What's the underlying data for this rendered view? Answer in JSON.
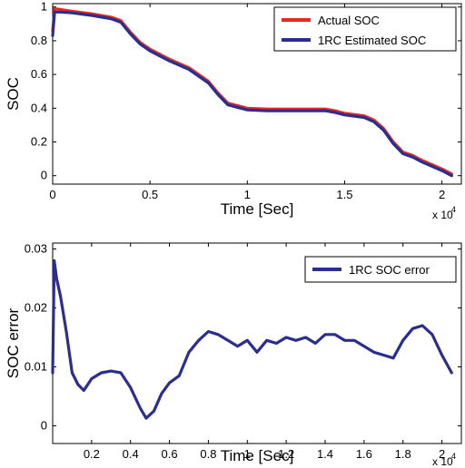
{
  "chart_data": [
    {
      "type": "line",
      "title": "",
      "xlabel": "Time [Sec]",
      "ylabel": "SOC",
      "x_scale_label": "x 10",
      "x_scale_exponent": "4",
      "xlim": [
        0,
        21000
      ],
      "ylim": [
        -0.05,
        1.02
      ],
      "xticks": [
        0,
        5000,
        10000,
        15000,
        20000
      ],
      "xtick_labels": [
        "0",
        "0.5",
        "1",
        "1.5",
        "2"
      ],
      "yticks": [
        0,
        0.2,
        0.4,
        0.6,
        0.8,
        1
      ],
      "ytick_labels": [
        "0",
        "0.2",
        "0.4",
        "0.6",
        "0.8",
        "1"
      ],
      "grid": false,
      "legend_position": "top-right",
      "series": [
        {
          "name": "Actual SOC",
          "color": "#e8281e",
          "x": [
            0,
            100,
            400,
            1000,
            2000,
            3000,
            3500,
            4000,
            4500,
            5000,
            6000,
            7000,
            8000,
            8500,
            9000,
            10000,
            11000,
            12000,
            13000,
            14000,
            14500,
            15000,
            16000,
            16500,
            17000,
            17500,
            18000,
            18500,
            19000,
            20000,
            20500
          ],
          "y": [
            0.86,
            0.99,
            0.985,
            0.975,
            0.96,
            0.94,
            0.92,
            0.85,
            0.79,
            0.75,
            0.69,
            0.64,
            0.56,
            0.49,
            0.43,
            0.4,
            0.395,
            0.395,
            0.395,
            0.395,
            0.385,
            0.37,
            0.355,
            0.33,
            0.28,
            0.2,
            0.14,
            0.12,
            0.09,
            0.04,
            0.01
          ]
        },
        {
          "name": "1RC Estimated SOC",
          "color": "#2b2d8f",
          "x": [
            0,
            100,
            400,
            1000,
            2000,
            3000,
            3500,
            4000,
            4500,
            5000,
            6000,
            7000,
            8000,
            8500,
            9000,
            10000,
            11000,
            12000,
            13000,
            14000,
            14500,
            15000,
            16000,
            16500,
            17000,
            17500,
            18000,
            18500,
            19000,
            20000,
            20500
          ],
          "y": [
            0.83,
            0.97,
            0.97,
            0.965,
            0.95,
            0.93,
            0.91,
            0.84,
            0.78,
            0.74,
            0.68,
            0.63,
            0.55,
            0.48,
            0.42,
            0.39,
            0.385,
            0.385,
            0.385,
            0.385,
            0.375,
            0.36,
            0.345,
            0.32,
            0.27,
            0.19,
            0.13,
            0.11,
            0.08,
            0.03,
            0.0
          ]
        }
      ]
    },
    {
      "type": "line",
      "title": "",
      "xlabel": "Time [Sec]",
      "ylabel": "SOC error",
      "x_scale_label": "x 10",
      "x_scale_exponent": "4",
      "xlim": [
        0,
        21000
      ],
      "ylim": [
        -0.003,
        0.031
      ],
      "xticks": [
        2000,
        4000,
        6000,
        8000,
        10000,
        12000,
        14000,
        16000,
        18000,
        20000
      ],
      "xtick_labels": [
        "0.2",
        "0.4",
        "0.6",
        "0.8",
        "1",
        "1.2",
        "1.4",
        "1.6",
        "1.8",
        "2"
      ],
      "yticks": [
        0,
        0.01,
        0.02,
        0.03
      ],
      "ytick_labels": [
        "0",
        "0.01",
        "0.02",
        "0.03"
      ],
      "grid": false,
      "legend_position": "top-right",
      "series": [
        {
          "name": "1RC SOC error",
          "color": "#2b2d8f",
          "x": [
            0,
            80,
            200,
            400,
            700,
            1000,
            1300,
            1600,
            2000,
            2500,
            3000,
            3500,
            4000,
            4500,
            4800,
            5200,
            5600,
            6000,
            6500,
            7000,
            7500,
            8000,
            8500,
            9000,
            9500,
            10000,
            10500,
            11000,
            11500,
            12000,
            12500,
            13000,
            13500,
            14000,
            14500,
            15000,
            15500,
            16000,
            16500,
            17000,
            17500,
            18000,
            18500,
            19000,
            19500,
            20000,
            20500
          ],
          "y": [
            0.009,
            0.028,
            0.025,
            0.022,
            0.016,
            0.009,
            0.007,
            0.006,
            0.008,
            0.009,
            0.0093,
            0.009,
            0.0065,
            0.003,
            0.0013,
            0.0025,
            0.0055,
            0.0073,
            0.0085,
            0.0125,
            0.0145,
            0.016,
            0.0155,
            0.0145,
            0.0135,
            0.0145,
            0.0125,
            0.0145,
            0.014,
            0.015,
            0.0145,
            0.015,
            0.014,
            0.0155,
            0.0155,
            0.0145,
            0.0145,
            0.0135,
            0.0125,
            0.012,
            0.0115,
            0.0145,
            0.0165,
            0.017,
            0.0155,
            0.012,
            0.009
          ]
        }
      ]
    }
  ]
}
